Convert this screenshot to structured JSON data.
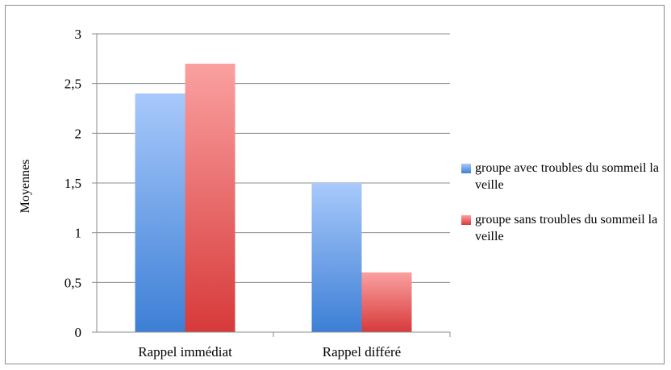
{
  "chart_data": {
    "type": "bar",
    "categories": [
      "Rappel immédiat",
      "Rappel différé"
    ],
    "series": [
      {
        "name": "groupe avec troubles du sommeil la veille",
        "values": [
          2.4,
          1.5
        ],
        "color": "#4a86dc"
      },
      {
        "name": "groupe sans troubles du sommeil la veille",
        "values": [
          2.7,
          0.6
        ],
        "color": "#e04a4a"
      }
    ],
    "y_ticks": [
      "0",
      "0,5",
      "1",
      "1,5",
      "2",
      "2,5",
      "3"
    ],
    "ylim": [
      0,
      3
    ],
    "ylabel": "Moyennes",
    "xlabel": "",
    "grid": true,
    "legend_position": "right"
  }
}
